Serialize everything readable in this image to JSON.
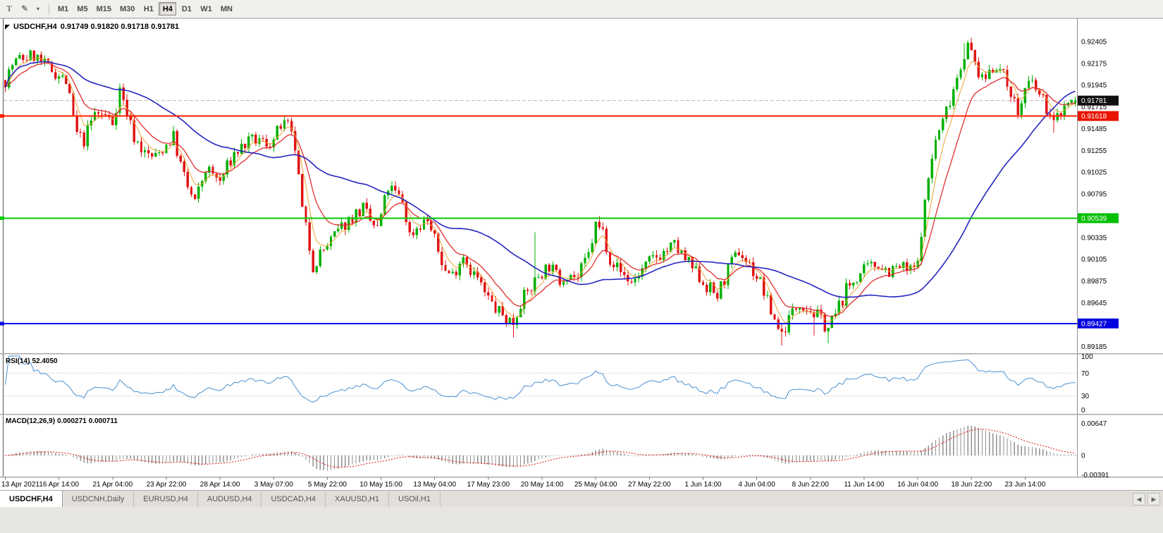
{
  "toolbar": {
    "tools": [
      {
        "name": "text-tool",
        "glyph": "T"
      },
      {
        "name": "draw-tool",
        "glyph": "✎"
      },
      {
        "name": "tool-dropdown",
        "glyph": "▾"
      }
    ],
    "timeframes": [
      "M1",
      "M5",
      "M15",
      "M30",
      "H1",
      "H4",
      "D1",
      "W1",
      "MN"
    ],
    "active_timeframe": "H4"
  },
  "chart": {
    "title_symbol": "USDCHF,H4",
    "title_ohlc": "0.91749 0.91820 0.91718 0.91781"
  },
  "rsi": {
    "label": "RSI(14)",
    "value": "52.4050"
  },
  "macd": {
    "label": "MACD(12,26,9)",
    "value_macd": "0.000271",
    "value_signal": "0.000711"
  },
  "tab_bar": {
    "tabs": [
      "USDCHF,H4",
      "USDCNH,Daily",
      "EURUSD,H4",
      "AUDUSD,H4",
      "USDCAD,H4",
      "XAUUSD,H1",
      "USOil,H1"
    ],
    "active_tab": "USDCHF,H4",
    "scroll_left": "◀",
    "scroll_right": "▶"
  },
  "chart_data": [
    {
      "id": "main",
      "type": "candlestick",
      "symbol": "USDCHF",
      "timeframe": "H4",
      "bars": 300,
      "last_candle": {
        "open": 0.91749,
        "high": 0.9182,
        "low": 0.91718,
        "close": 0.91781
      },
      "y_range": [
        0.8912,
        0.9265
      ],
      "y_ticks": [
        0.92405,
        0.92175,
        0.91945,
        0.91715,
        0.91485,
        0.91255,
        0.91025,
        0.90795,
        0.90565,
        0.90335,
        0.90105,
        0.89875,
        0.89645,
        0.89415,
        0.89185
      ],
      "up_color": "#00b000",
      "down_color": "#e01414",
      "current_price": {
        "value": 0.91781,
        "line_color": "#b6b6b6"
      },
      "hlines": [
        {
          "value": 0.91618,
          "color": "#ff2000",
          "width": 2,
          "label": "0.91618"
        },
        {
          "value": 0.90539,
          "color": "#00cc00",
          "width": 2,
          "label": "0.90539"
        },
        {
          "value": 0.89427,
          "color": "#0000ee",
          "width": 2,
          "label": "0.89427"
        }
      ],
      "badges": [
        {
          "value": 0.91781,
          "color": "#111111",
          "label": "0.91781"
        },
        {
          "value": 0.91618,
          "color": "#e81400",
          "label": "0.91618"
        },
        {
          "value": 0.90539,
          "color": "#00c000",
          "label": "0.90539"
        },
        {
          "value": 0.89427,
          "color": "#0000e0",
          "label": "0.89427"
        }
      ],
      "overlays": [
        {
          "name": "ma-fast",
          "type": "ema",
          "period": 5,
          "color": "#eba433",
          "width": 1
        },
        {
          "name": "ma-mid",
          "type": "ema",
          "period": 12,
          "color": "#e03030",
          "width": 1.3
        },
        {
          "name": "ma-slow",
          "type": "sma",
          "period": 40,
          "color": "#2525c0",
          "width": 1.6
        }
      ],
      "noise": {
        "seed": 7,
        "close_amp": 0.0008,
        "wick_amp": 0.00055
      },
      "price_path": [
        [
          0,
          0.92
        ],
        [
          2,
          0.9216
        ],
        [
          4,
          0.9222
        ],
        [
          8,
          0.9226
        ],
        [
          11,
          0.9215
        ],
        [
          14,
          0.9208
        ],
        [
          17,
          0.9198
        ],
        [
          20,
          0.9142
        ],
        [
          22,
          0.9136
        ],
        [
          25,
          0.9165
        ],
        [
          28,
          0.9162
        ],
        [
          30,
          0.9155
        ],
        [
          32,
          0.919
        ],
        [
          34,
          0.9165
        ],
        [
          36,
          0.914
        ],
        [
          39,
          0.9122
        ],
        [
          42,
          0.9118
        ],
        [
          45,
          0.9132
        ],
        [
          47,
          0.914
        ],
        [
          49,
          0.911
        ],
        [
          51,
          0.9086
        ],
        [
          53,
          0.907
        ],
        [
          56,
          0.9106
        ],
        [
          58,
          0.91
        ],
        [
          60,
          0.9092
        ],
        [
          62,
          0.9108
        ],
        [
          64,
          0.9122
        ],
        [
          67,
          0.9132
        ],
        [
          70,
          0.9136
        ],
        [
          73,
          0.9133
        ],
        [
          75,
          0.9136
        ],
        [
          77,
          0.9152
        ],
        [
          79,
          0.915
        ],
        [
          81,
          0.9128
        ],
        [
          83,
          0.9062
        ],
        [
          86,
          0.9004
        ],
        [
          88,
          0.9016
        ],
        [
          91,
          0.903
        ],
        [
          94,
          0.9044
        ],
        [
          97,
          0.9056
        ],
        [
          100,
          0.9064
        ],
        [
          102,
          0.905
        ],
        [
          104,
          0.9042
        ],
        [
          107,
          0.9086
        ],
        [
          109,
          0.908
        ],
        [
          111,
          0.9072
        ],
        [
          113,
          0.9036
        ],
        [
          116,
          0.9048
        ],
        [
          118,
          0.9052
        ],
        [
          120,
          0.903
        ],
        [
          123,
          0.8998
        ],
        [
          125,
          0.8994
        ],
        [
          128,
          0.9016
        ],
        [
          130,
          0.9
        ],
        [
          132,
          0.899
        ],
        [
          134,
          0.8974
        ],
        [
          137,
          0.8958
        ],
        [
          140,
          0.8948
        ],
        [
          142,
          0.8944
        ],
        [
          144,
          0.8966
        ],
        [
          147,
          0.898
        ],
        [
          149,
          0.8994
        ],
        [
          152,
          0.9004
        ],
        [
          155,
          0.8988
        ],
        [
          157,
          0.8997
        ],
        [
          160,
          0.8991
        ],
        [
          163,
          0.9015
        ],
        [
          165,
          0.9046
        ],
        [
          167,
          0.904
        ],
        [
          169,
          0.9012
        ],
        [
          172,
          0.8997
        ],
        [
          175,
          0.8986
        ],
        [
          178,
          0.8999
        ],
        [
          181,
          0.9011
        ],
        [
          184,
          0.9018
        ],
        [
          187,
          0.9025
        ],
        [
          190,
          0.901
        ],
        [
          193,
          0.8996
        ],
        [
          196,
          0.8982
        ],
        [
          199,
          0.8972
        ],
        [
          202,
          0.8999
        ],
        [
          205,
          0.9019
        ],
        [
          208,
          0.9004
        ],
        [
          211,
          0.8986
        ],
        [
          214,
          0.8955
        ],
        [
          217,
          0.8932
        ],
        [
          219,
          0.8948
        ],
        [
          222,
          0.8966
        ],
        [
          224,
          0.896
        ],
        [
          227,
          0.895
        ],
        [
          230,
          0.8938
        ],
        [
          232,
          0.8952
        ],
        [
          235,
          0.8978
        ],
        [
          238,
          0.8992
        ],
        [
          241,
          0.9
        ],
        [
          244,
          0.9006
        ],
        [
          247,
          0.8998
        ],
        [
          250,
          0.9002
        ],
        [
          253,
          0.8998
        ],
        [
          255,
          0.9004
        ],
        [
          256,
          0.9042
        ],
        [
          257,
          0.9068
        ],
        [
          258,
          0.9096
        ],
        [
          259,
          0.9118
        ],
        [
          260,
          0.9136
        ],
        [
          262,
          0.9156
        ],
        [
          264,
          0.918
        ],
        [
          266,
          0.9204
        ],
        [
          268,
          0.9228
        ],
        [
          269,
          0.9236
        ],
        [
          271,
          0.9218
        ],
        [
          273,
          0.9198
        ],
        [
          275,
          0.921
        ],
        [
          277,
          0.9217
        ],
        [
          279,
          0.9203
        ],
        [
          281,
          0.9189
        ],
        [
          283,
          0.9164
        ],
        [
          285,
          0.9189
        ],
        [
          287,
          0.9197
        ],
        [
          289,
          0.9183
        ],
        [
          291,
          0.9171
        ],
        [
          293,
          0.9153
        ],
        [
          295,
          0.9168
        ],
        [
          297,
          0.9176
        ],
        [
          299,
          0.9178
        ]
      ],
      "wick_overrides": {
        "8": {
          "high": 0.9229
        },
        "32": {
          "high": 0.9196
        },
        "86": {
          "low": 0.8996
        },
        "142": {
          "low": 0.8928
        },
        "148": {
          "high": 0.90388
        },
        "166": {
          "high": 0.90562
        },
        "217": {
          "low": 0.89196
        },
        "226": {
          "low": 0.893
        },
        "230": {
          "low": 0.89215
        },
        "268": {
          "high": 0.9239
        },
        "269": {
          "high": 0.92415
        },
        "293": {
          "low": 0.9144
        }
      },
      "x_ticks": [
        {
          "bar": 0,
          "label": "13 Apr 2021"
        },
        {
          "bar": 15,
          "label": "16 Apr 14:00"
        },
        {
          "bar": 30,
          "label": "21 Apr 04:00"
        },
        {
          "bar": 45,
          "label": "23 Apr 22:00"
        },
        {
          "bar": 60,
          "label": "28 Apr 14:00"
        },
        {
          "bar": 75,
          "label": "3 May 07:00"
        },
        {
          "bar": 90,
          "label": "5 May 22:00"
        },
        {
          "bar": 105,
          "label": "10 May 15:00"
        },
        {
          "bar": 120,
          "label": "13 May 04:00"
        },
        {
          "bar": 135,
          "label": "17 May 23:00"
        },
        {
          "bar": 150,
          "label": "20 May 14:00"
        },
        {
          "bar": 165,
          "label": "25 May 04:00"
        },
        {
          "bar": 180,
          "label": "27 May 22:00"
        },
        {
          "bar": 195,
          "label": "1 Jun 14:00"
        },
        {
          "bar": 210,
          "label": "4 Jun 04:00"
        },
        {
          "bar": 225,
          "label": "8 Jun 22:00"
        },
        {
          "bar": 240,
          "label": "11 Jun 14:00"
        },
        {
          "bar": 255,
          "label": "16 Jun 04:00"
        },
        {
          "bar": 270,
          "label": "18 Jun 22:00"
        },
        {
          "bar": 285,
          "label": "23 Jun 14:00"
        }
      ]
    },
    {
      "id": "rsi",
      "type": "line",
      "indicator": "RSI",
      "period": 14,
      "range": [
        0,
        100
      ],
      "levels": [
        70,
        30
      ],
      "ticks": [
        100,
        70,
        30,
        0
      ],
      "color": "#4a90d2",
      "current": 52.405
    },
    {
      "id": "macd",
      "type": "macd",
      "fast": 12,
      "slow": 26,
      "signal": 9,
      "histogram_color": "#909090",
      "signal_color": "#dc1414",
      "ticks": [
        {
          "value": 0.00647,
          "label": "0.00647"
        },
        {
          "value": 0,
          "label": "0"
        },
        {
          "value": -0.00391,
          "label": "-0.00391"
        }
      ],
      "current_macd": 0.000271,
      "current_signal": 0.000711
    }
  ]
}
